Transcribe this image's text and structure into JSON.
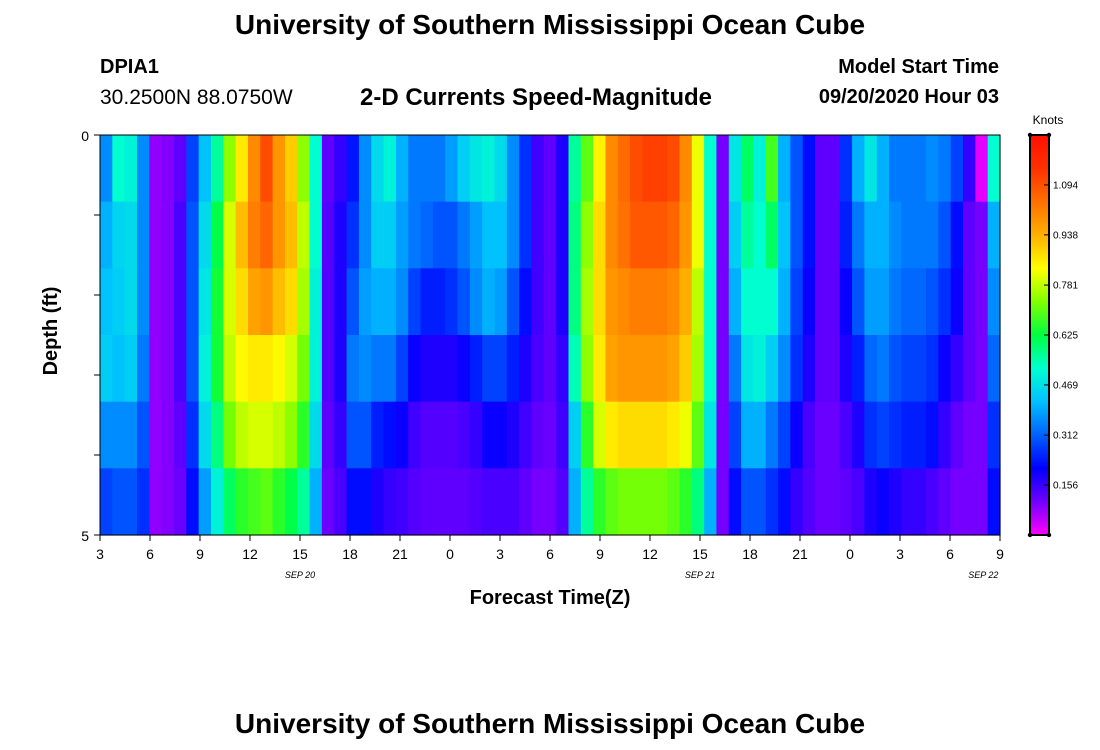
{
  "header": {
    "title_top": "University of Southern Mississippi Ocean Cube",
    "title_bottom": "University of Southern Mississippi Ocean Cube",
    "station": "DPIA1",
    "coords": "30.2500N 88.0750W",
    "subtitle": "2-D Currents Speed-Magnitude",
    "model_start_label": "Model Start Time",
    "model_start_value": "09/20/2020 Hour 03"
  },
  "chart_data": {
    "type": "heatmap",
    "title": "2-D Currents Speed-Magnitude",
    "xlabel": "Forecast Time(Z)",
    "ylabel": "Depth (ft)",
    "x_tick_labels": [
      "3",
      "6",
      "9",
      "12",
      "15",
      "18",
      "21",
      "0",
      "3",
      "6",
      "9",
      "12",
      "15",
      "18",
      "21",
      "0",
      "3",
      "6",
      "9"
    ],
    "date_labels": [
      {
        "text": "SEP 20",
        "at_hour": 12
      },
      {
        "text": "SEP 21",
        "at_hour": 36
      },
      {
        "text": "SEP 22",
        "at_hour": 53
      }
    ],
    "x_range_hours": [
      0,
      54
    ],
    "y_tick_labels": [
      "0",
      "5"
    ],
    "y_range": [
      0,
      5
    ],
    "colorbar": {
      "title": "Knots",
      "min": 0,
      "max": 1.25,
      "ticks": [
        "0.156",
        "0.312",
        "0.469",
        "0.625",
        "0.781",
        "0.938",
        "1.094"
      ],
      "tick_values": [
        0.156,
        0.312,
        0.469,
        0.625,
        0.781,
        0.938,
        1.094
      ],
      "colors": [
        "#ff00ff",
        "#7000ff",
        "#0000ff",
        "#0060ff",
        "#00c0ff",
        "#00ffd0",
        "#00ff40",
        "#80ff00",
        "#ffff00",
        "#ffb000",
        "#ff7000",
        "#ff3000",
        "#ff1000"
      ]
    },
    "layers": [
      [
        0.36,
        0.52,
        0.5,
        0.36,
        0.08,
        0.09,
        0.12,
        0.28,
        0.42,
        0.56,
        0.74,
        0.86,
        1.0,
        1.1,
        0.98,
        0.9,
        0.74,
        0.52,
        0.12,
        0.16,
        0.23,
        0.36,
        0.46,
        0.5,
        0.4,
        0.34,
        0.34,
        0.34,
        0.38,
        0.44,
        0.48,
        0.5,
        0.46,
        0.36,
        0.26,
        0.15,
        0.12,
        0.18,
        0.56,
        0.7,
        0.85,
        1.0,
        1.05,
        1.1,
        1.12,
        1.12,
        1.1,
        1.0,
        0.82,
        0.52,
        0.1,
        0.48,
        0.6,
        0.5,
        0.68,
        0.4,
        0.3,
        0.22,
        0.12,
        0.12,
        0.26,
        0.4,
        0.48,
        0.4,
        0.34,
        0.34,
        0.34,
        0.36,
        0.34,
        0.28,
        0.16,
        0.02,
        0.52
      ],
      [
        0.4,
        0.45,
        0.46,
        0.36,
        0.08,
        0.09,
        0.14,
        0.3,
        0.46,
        0.62,
        0.8,
        0.92,
        1.02,
        1.06,
        0.98,
        0.92,
        0.78,
        0.52,
        0.13,
        0.18,
        0.26,
        0.36,
        0.44,
        0.44,
        0.38,
        0.34,
        0.32,
        0.3,
        0.3,
        0.34,
        0.38,
        0.42,
        0.42,
        0.36,
        0.26,
        0.15,
        0.12,
        0.18,
        0.58,
        0.74,
        0.88,
        1.0,
        1.04,
        1.08,
        1.08,
        1.08,
        1.06,
        0.98,
        0.82,
        0.52,
        0.1,
        0.44,
        0.56,
        0.52,
        0.6,
        0.42,
        0.3,
        0.22,
        0.12,
        0.12,
        0.24,
        0.34,
        0.4,
        0.4,
        0.36,
        0.34,
        0.34,
        0.34,
        0.3,
        0.22,
        0.12,
        0.1,
        0.4
      ],
      [
        0.42,
        0.44,
        0.46,
        0.36,
        0.08,
        0.09,
        0.14,
        0.3,
        0.48,
        0.64,
        0.8,
        0.88,
        0.96,
        0.98,
        0.92,
        0.88,
        0.76,
        0.5,
        0.13,
        0.18,
        0.3,
        0.38,
        0.4,
        0.4,
        0.36,
        0.28,
        0.24,
        0.24,
        0.26,
        0.3,
        0.36,
        0.4,
        0.38,
        0.3,
        0.22,
        0.15,
        0.12,
        0.18,
        0.58,
        0.76,
        0.88,
        0.98,
        1.0,
        1.02,
        1.02,
        1.02,
        1.0,
        0.94,
        0.78,
        0.52,
        0.1,
        0.4,
        0.52,
        0.52,
        0.52,
        0.4,
        0.28,
        0.2,
        0.12,
        0.12,
        0.2,
        0.3,
        0.38,
        0.38,
        0.34,
        0.32,
        0.32,
        0.3,
        0.26,
        0.2,
        0.12,
        0.1,
        0.36
      ],
      [
        0.44,
        0.42,
        0.44,
        0.34,
        0.08,
        0.09,
        0.14,
        0.3,
        0.5,
        0.64,
        0.78,
        0.84,
        0.86,
        0.86,
        0.84,
        0.8,
        0.72,
        0.5,
        0.13,
        0.18,
        0.34,
        0.36,
        0.34,
        0.34,
        0.28,
        0.2,
        0.18,
        0.18,
        0.18,
        0.2,
        0.24,
        0.28,
        0.28,
        0.24,
        0.18,
        0.14,
        0.12,
        0.16,
        0.54,
        0.74,
        0.86,
        0.96,
        0.98,
        0.98,
        0.98,
        0.98,
        0.96,
        0.9,
        0.76,
        0.52,
        0.1,
        0.34,
        0.48,
        0.5,
        0.44,
        0.36,
        0.26,
        0.18,
        0.12,
        0.12,
        0.18,
        0.24,
        0.32,
        0.34,
        0.3,
        0.28,
        0.28,
        0.26,
        0.2,
        0.16,
        0.12,
        0.1,
        0.32
      ],
      [
        0.36,
        0.36,
        0.36,
        0.3,
        0.08,
        0.09,
        0.12,
        0.26,
        0.46,
        0.58,
        0.72,
        0.78,
        0.8,
        0.8,
        0.78,
        0.74,
        0.66,
        0.46,
        0.12,
        0.16,
        0.3,
        0.3,
        0.24,
        0.22,
        0.2,
        0.15,
        0.13,
        0.13,
        0.13,
        0.14,
        0.16,
        0.2,
        0.2,
        0.18,
        0.15,
        0.12,
        0.11,
        0.15,
        0.44,
        0.66,
        0.8,
        0.86,
        0.88,
        0.88,
        0.88,
        0.88,
        0.86,
        0.82,
        0.7,
        0.48,
        0.1,
        0.28,
        0.4,
        0.4,
        0.34,
        0.28,
        0.2,
        0.14,
        0.11,
        0.11,
        0.14,
        0.18,
        0.26,
        0.28,
        0.26,
        0.24,
        0.24,
        0.22,
        0.16,
        0.12,
        0.1,
        0.1,
        0.26
      ],
      [
        0.28,
        0.3,
        0.3,
        0.26,
        0.08,
        0.09,
        0.11,
        0.22,
        0.38,
        0.5,
        0.6,
        0.66,
        0.68,
        0.7,
        0.66,
        0.62,
        0.56,
        0.4,
        0.11,
        0.14,
        0.22,
        0.22,
        0.18,
        0.16,
        0.15,
        0.13,
        0.12,
        0.12,
        0.12,
        0.12,
        0.13,
        0.14,
        0.14,
        0.14,
        0.12,
        0.1,
        0.1,
        0.13,
        0.4,
        0.56,
        0.66,
        0.7,
        0.72,
        0.72,
        0.72,
        0.72,
        0.7,
        0.66,
        0.58,
        0.4,
        0.1,
        0.22,
        0.3,
        0.3,
        0.26,
        0.22,
        0.16,
        0.13,
        0.11,
        0.11,
        0.12,
        0.14,
        0.18,
        0.2,
        0.18,
        0.16,
        0.16,
        0.14,
        0.12,
        0.1,
        0.1,
        0.1,
        0.22
      ]
    ]
  }
}
